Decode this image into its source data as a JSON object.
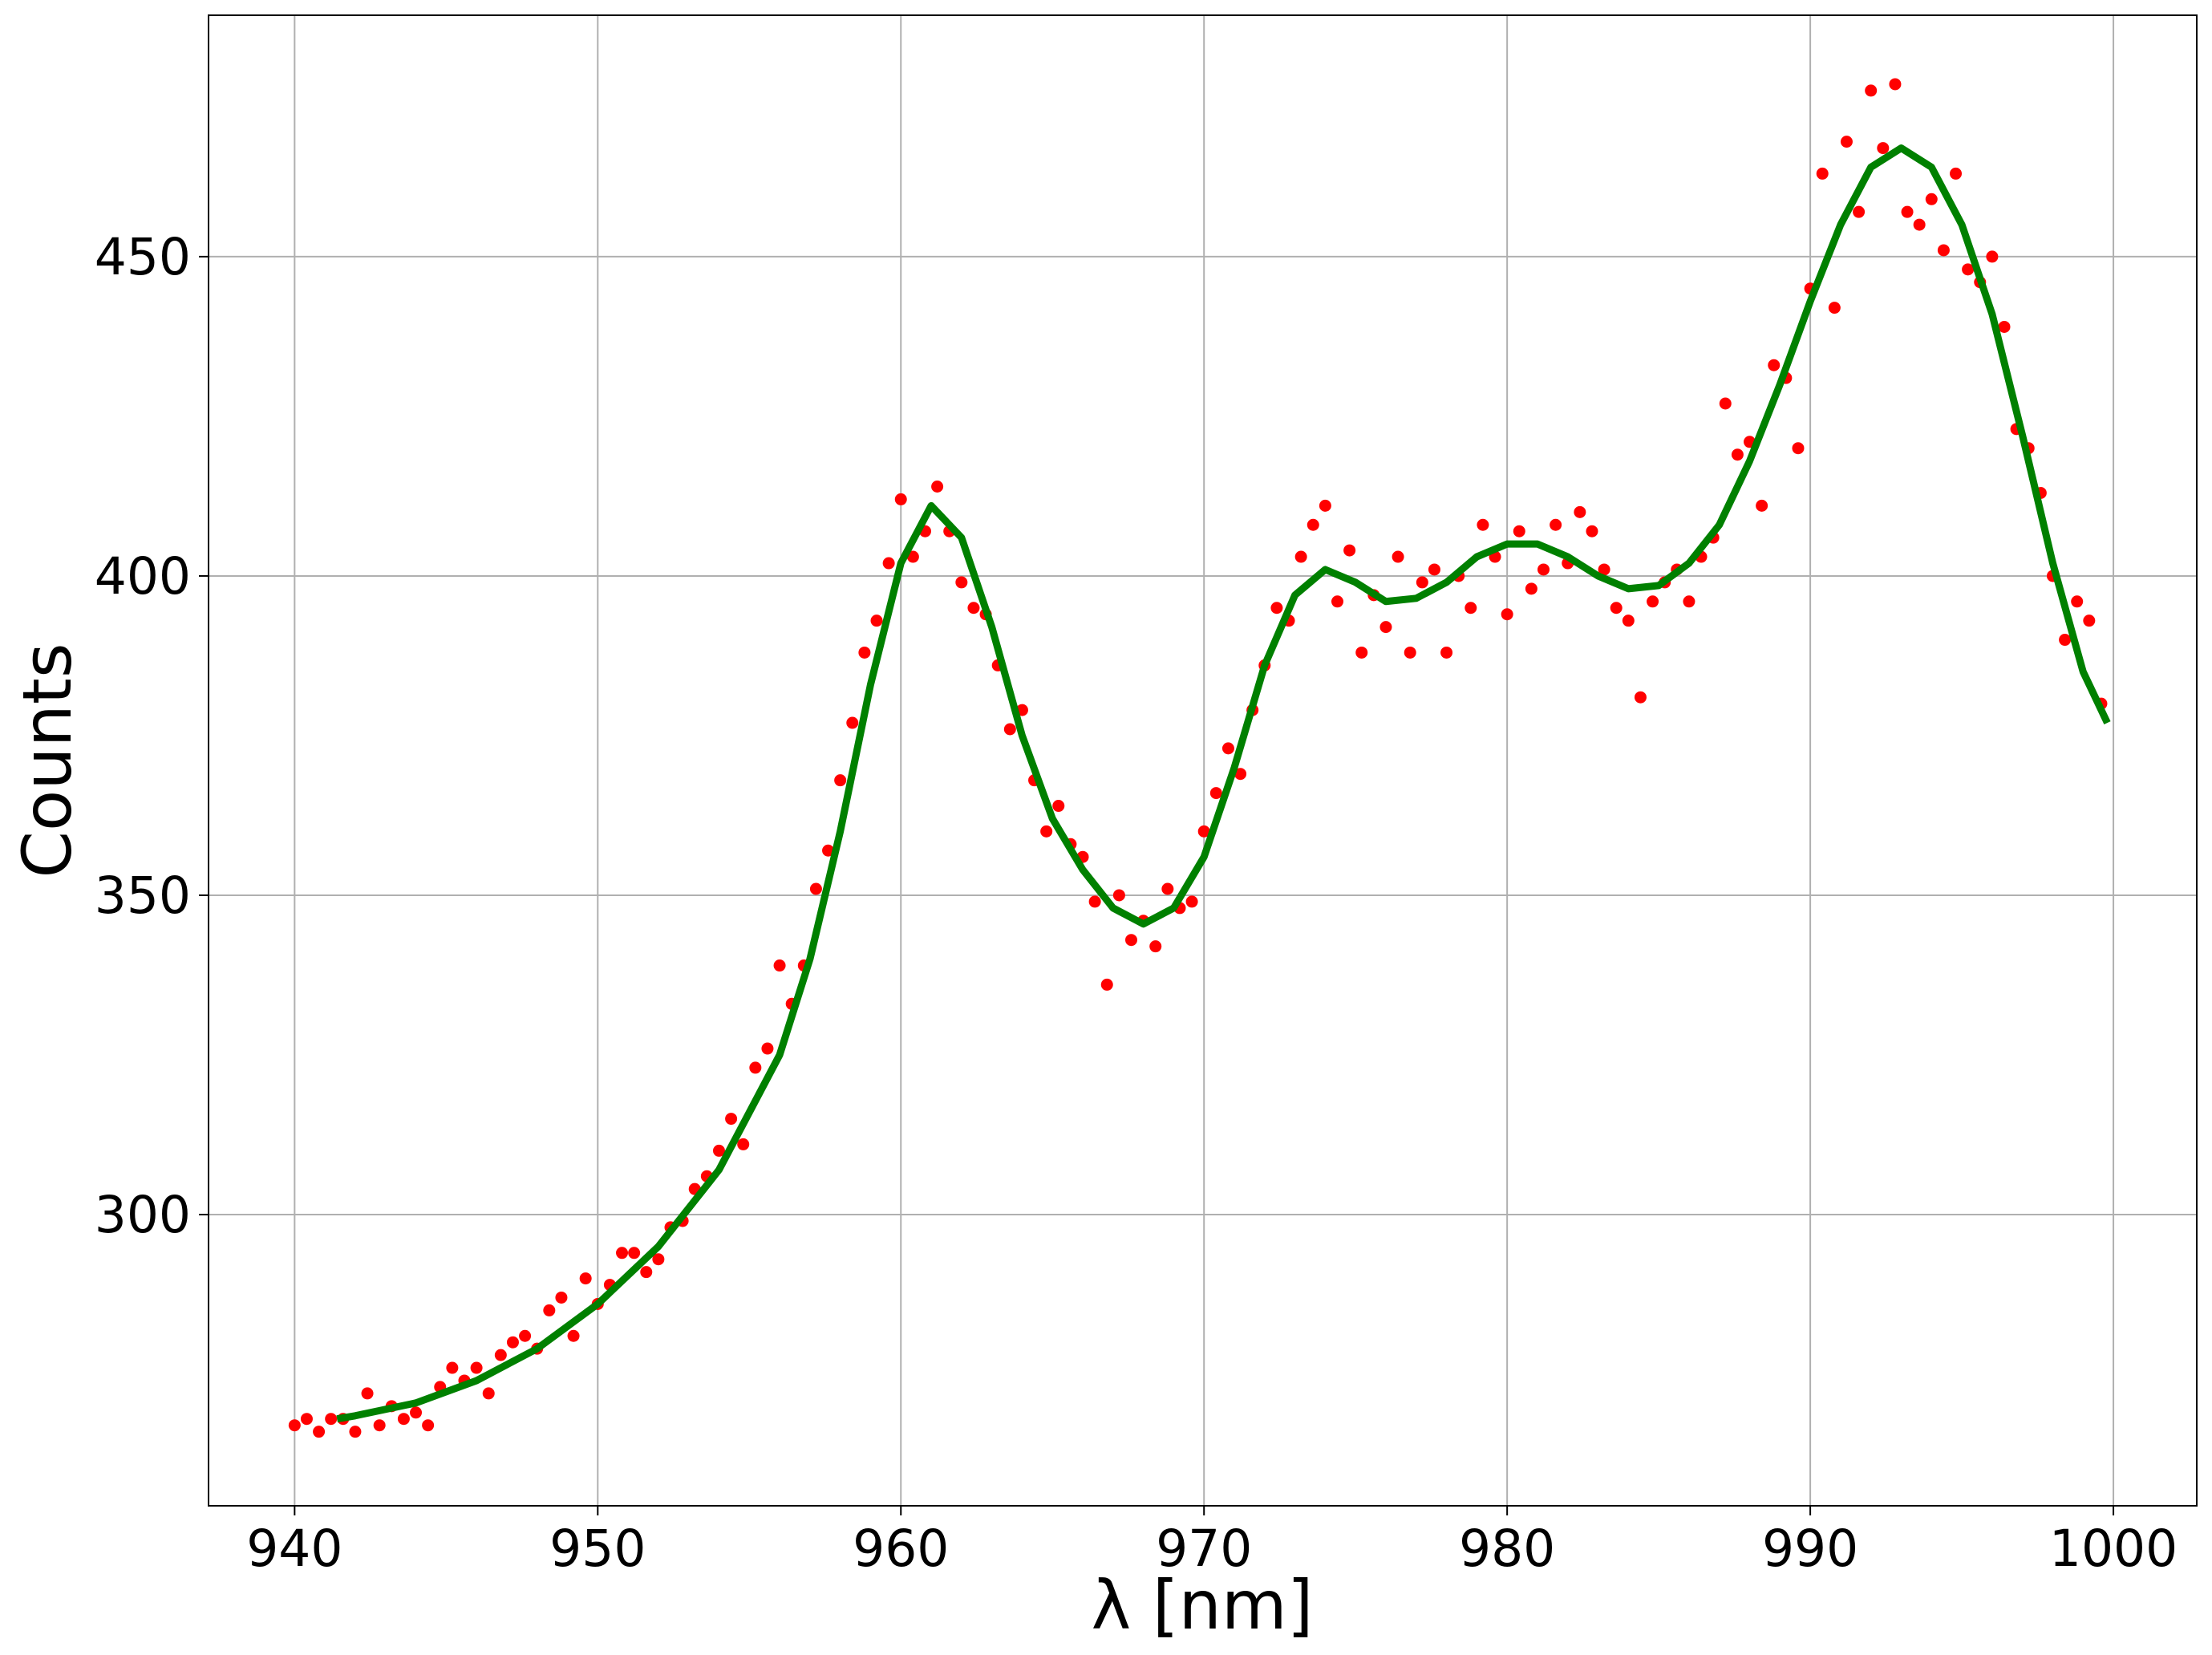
{
  "chart_data": {
    "type": "scatter",
    "x_label": "λ [nm]",
    "y_label": "Counts",
    "xlim": [
      937.16,
      1002.75
    ],
    "ylim": [
      254.4,
      487.8
    ],
    "xticks": [
      940,
      950,
      960,
      970,
      980,
      990,
      1000
    ],
    "yticks": [
      300,
      350,
      400,
      450
    ],
    "grid": true,
    "series": [
      {
        "mode": "markers",
        "color": "#ff0000",
        "x": [
          940.0,
          940.4,
          940.8,
          941.2,
          941.6,
          942.0,
          942.4,
          942.8,
          943.2,
          943.6,
          944.0,
          944.4,
          944.8,
          945.2,
          945.6,
          946.0,
          946.4,
          946.8,
          947.2,
          947.6,
          948.0,
          948.4,
          948.8,
          949.2,
          949.6,
          950.0,
          950.4,
          950.8,
          951.2,
          951.6,
          952.0,
          952.4,
          952.8,
          953.2,
          953.6,
          954.0,
          954.4,
          954.8,
          955.2,
          955.6,
          956.0,
          956.4,
          956.8,
          957.2,
          957.6,
          958.0,
          958.4,
          958.8,
          959.2,
          959.6,
          960.0,
          960.4,
          960.8,
          961.2,
          961.6,
          962.0,
          962.4,
          962.8,
          963.2,
          963.6,
          964.0,
          964.4,
          964.8,
          965.2,
          965.6,
          966.0,
          966.4,
          966.8,
          967.2,
          967.6,
          968.0,
          968.4,
          968.8,
          969.2,
          969.6,
          970.0,
          970.4,
          970.8,
          971.2,
          971.6,
          972.0,
          972.4,
          972.8,
          973.2,
          973.6,
          974.0,
          974.4,
          974.8,
          975.2,
          975.6,
          976.0,
          976.4,
          976.8,
          977.2,
          977.6,
          978.0,
          978.4,
          978.8,
          979.2,
          979.6,
          980.0,
          980.4,
          980.8,
          981.2,
          981.6,
          982.0,
          982.4,
          982.8,
          983.2,
          983.6,
          984.0,
          984.4,
          984.8,
          985.2,
          985.6,
          986.0,
          986.4,
          986.8,
          987.2,
          987.6,
          988.0,
          988.4,
          988.8,
          989.2,
          989.6,
          990.0,
          990.4,
          990.8,
          991.2,
          991.6,
          992.0,
          992.4,
          992.8,
          993.2,
          993.6,
          994.0,
          994.4,
          994.8,
          995.2,
          995.6,
          996.0,
          996.4,
          996.8,
          997.2,
          997.6,
          998.0,
          998.4,
          998.8,
          999.2,
          999.6
        ],
        "values": [
          267,
          268,
          266,
          268,
          268,
          266,
          272,
          267,
          270,
          268,
          269,
          267,
          273,
          276,
          274,
          276,
          272,
          278,
          280,
          281,
          279,
          285,
          287,
          281,
          290,
          286,
          289,
          294,
          294,
          291,
          293,
          298,
          299,
          304,
          306,
          310,
          315,
          311,
          323,
          326,
          339,
          333,
          339,
          351,
          357,
          368,
          377,
          388,
          393,
          402,
          412,
          403,
          407,
          414,
          407,
          399,
          395,
          394,
          386,
          376,
          379,
          368,
          360,
          364,
          358,
          356,
          349,
          336,
          350,
          343,
          346,
          342,
          351,
          348,
          349,
          360,
          366,
          373,
          369,
          379,
          386,
          395,
          393,
          403,
          408,
          411,
          396,
          404,
          388,
          397,
          392,
          403,
          388,
          399,
          401,
          388,
          400,
          395,
          408,
          403,
          394,
          407,
          398,
          401,
          408,
          402,
          410,
          407,
          401,
          395,
          393,
          381,
          396,
          399,
          401,
          396,
          403,
          406,
          427,
          419,
          421,
          411,
          433,
          431,
          420,
          445,
          463,
          442,
          468,
          457,
          476,
          467,
          477,
          457,
          455,
          459,
          451,
          463,
          448,
          446,
          450,
          439,
          423,
          420,
          413,
          400,
          390,
          396,
          393,
          380
        ]
      },
      {
        "mode": "line",
        "color": "#008000",
        "x": [
          941.4,
          942,
          944,
          946,
          948,
          950,
          952,
          954,
          956,
          957,
          958,
          959,
          960,
          961,
          962,
          963,
          964,
          965,
          966,
          967,
          968,
          969,
          970,
          971,
          972,
          973,
          974,
          975,
          976,
          977,
          978,
          979,
          980,
          981,
          982,
          983,
          984,
          985,
          986,
          987,
          988,
          989,
          990,
          991,
          992,
          993,
          994,
          995,
          996,
          997,
          998,
          999,
          999.8
        ],
        "values": [
          268,
          268.5,
          270.5,
          274,
          279,
          286,
          295,
          307,
          325,
          340,
          360,
          383,
          402,
          411,
          406,
          392,
          375,
          362,
          354,
          348,
          345.5,
          348,
          356,
          370,
          386,
          397,
          401,
          399,
          396,
          396.5,
          399,
          403,
          405,
          405,
          403,
          400,
          398,
          398.5,
          402,
          408,
          418,
          430,
          443,
          455,
          464,
          467,
          464,
          455,
          441,
          422,
          402,
          385,
          377
        ]
      }
    ]
  }
}
